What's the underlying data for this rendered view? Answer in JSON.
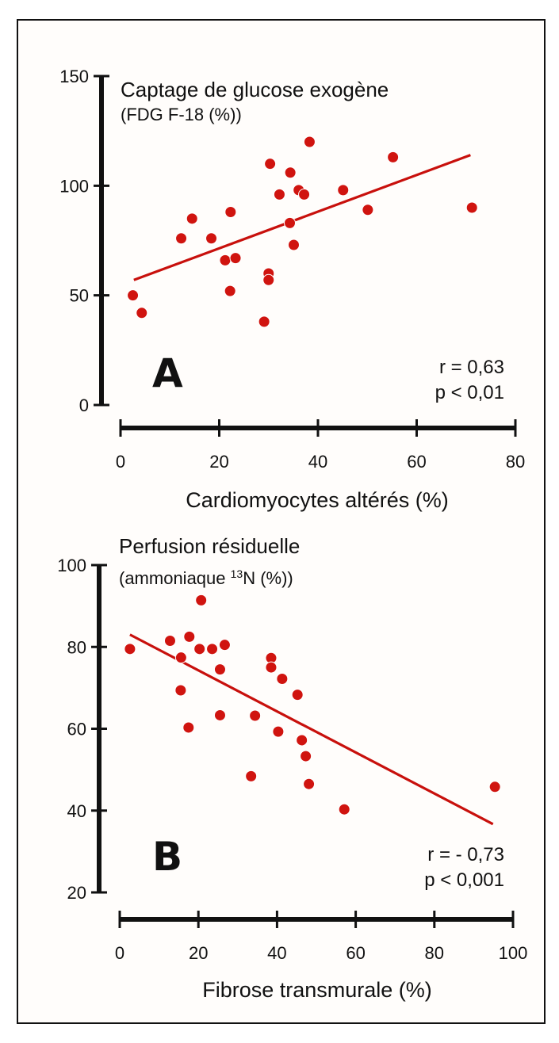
{
  "colors": {
    "point": "#d0140f",
    "fit_line": "#c8100c",
    "axis": "#111111",
    "frame": "#111111"
  },
  "chart_data": [
    {
      "panel": "A",
      "type": "scatter",
      "title": "Captage de glucose exogène",
      "subtitle": "(FDG F-18 (%))",
      "xlabel": "Cardiomyocytes altérés (%)",
      "ylabel": "Captage de glucose exogène (FDG F-18 (%))",
      "xlim": [
        0,
        80
      ],
      "ylim": [
        0,
        150
      ],
      "xticks": [
        0,
        20,
        40,
        60,
        80
      ],
      "yticks": [
        0,
        50,
        100,
        150
      ],
      "grid": false,
      "stats": {
        "r": "r = 0,63",
        "p": "p < 0,01"
      },
      "points": [
        [
          2.5,
          50
        ],
        [
          4.3,
          42
        ],
        [
          12.3,
          76
        ],
        [
          14.5,
          85
        ],
        [
          18.4,
          76
        ],
        [
          21.2,
          66
        ],
        [
          23.3,
          67
        ],
        [
          22.3,
          88
        ],
        [
          22.2,
          52
        ],
        [
          29.1,
          38
        ],
        [
          30.0,
          60
        ],
        [
          30.0,
          57
        ],
        [
          30.3,
          110
        ],
        [
          32.2,
          96
        ],
        [
          34.4,
          106
        ],
        [
          34.3,
          83
        ],
        [
          35.1,
          73
        ],
        [
          36.1,
          98
        ],
        [
          37.2,
          96
        ],
        [
          38.3,
          120
        ],
        [
          45.1,
          98
        ],
        [
          50.1,
          89
        ],
        [
          55.2,
          113
        ],
        [
          71.2,
          90
        ]
      ],
      "fit_line": [
        [
          2.7,
          57
        ],
        [
          70.9,
          114
        ]
      ]
    },
    {
      "panel": "B",
      "type": "scatter",
      "title": "Perfusion résiduelle",
      "subtitle_pre": "(ammoniaque ",
      "subtitle_sup": "13",
      "subtitle_post": "N (%))",
      "xlabel": "Fibrose transmurale (%)",
      "ylabel": "Perfusion résiduelle (ammoniaque 13N (%))",
      "xlim": [
        0,
        100
      ],
      "ylim": [
        20,
        100
      ],
      "xticks": [
        0,
        20,
        40,
        60,
        80,
        100
      ],
      "yticks": [
        20,
        40,
        60,
        80,
        100
      ],
      "grid": false,
      "stats": {
        "r": "r = - 0,73",
        "p": "p < 0,001"
      },
      "points": [
        [
          2.6,
          79.5
        ],
        [
          12.8,
          81.5
        ],
        [
          17.7,
          82.5
        ],
        [
          20.7,
          91.4
        ],
        [
          20.3,
          79.5
        ],
        [
          23.5,
          79.5
        ],
        [
          26.7,
          80.5
        ],
        [
          15.6,
          77.4
        ],
        [
          25.5,
          74.5
        ],
        [
          15.5,
          69.4
        ],
        [
          17.5,
          60.3
        ],
        [
          25.5,
          63.3
        ],
        [
          34.4,
          63.2
        ],
        [
          38.5,
          77.3
        ],
        [
          38.5,
          75.0
        ],
        [
          41.3,
          72.2
        ],
        [
          45.2,
          68.3
        ],
        [
          40.3,
          59.3
        ],
        [
          46.3,
          57.2
        ],
        [
          47.3,
          53.3
        ],
        [
          33.4,
          48.4
        ],
        [
          48.1,
          46.5
        ],
        [
          57.1,
          40.3
        ],
        [
          95.4,
          45.8
        ]
      ],
      "fit_line": [
        [
          2.6,
          83.0
        ],
        [
          94.9,
          36.7
        ]
      ]
    }
  ]
}
